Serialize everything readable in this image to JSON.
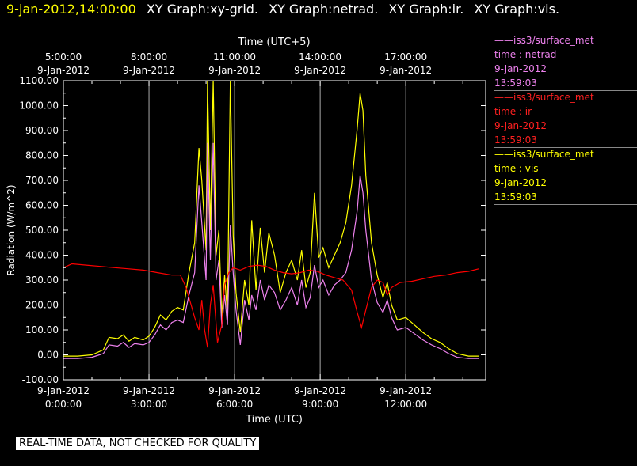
{
  "header": {
    "timestamp": "9-jan-2012,14:00:00",
    "graphs": [
      "XY Graph:xy-grid.",
      "XY Graph:netrad.",
      "XY Graph:ir.",
      "XY Graph:vis."
    ]
  },
  "legend": [
    {
      "source": "iss3/surface_met",
      "vars": "time : netrad",
      "date": "9-Jan-2012",
      "time": "13:59:03",
      "color": "#ee82ee"
    },
    {
      "source": "iss3/surface_met",
      "vars": "time : ir",
      "date": "9-Jan-2012",
      "time": "13:59:03",
      "color": "#ff0000"
    },
    {
      "source": "iss3/surface_met",
      "vars": "time : vis",
      "date": "9-Jan-2012",
      "time": "13:59:03",
      "color": "#ffff00"
    }
  ],
  "warning": "REAL-TIME DATA, NOT CHECKED FOR QUALITY",
  "chart_data": {
    "type": "line",
    "ylabel": "Radiation (W/m^2)",
    "xlabel": "Time (UTC)",
    "x2label": "Time (UTC+5)",
    "ylim": [
      -100,
      1100
    ],
    "xlim": [
      0,
      14.8
    ],
    "yticks": [
      -100,
      0,
      100,
      200,
      300,
      400,
      500,
      600,
      700,
      800,
      900,
      1000,
      1100
    ],
    "ytick_labels": [
      "-100.00",
      "0.00",
      "100.00",
      "200.00",
      "300.00",
      "400.00",
      "500.00",
      "600.00",
      "700.00",
      "800.00",
      "900.00",
      "1000.00",
      "1100.00"
    ],
    "xticks_bottom": [
      {
        "x": 0,
        "date": "9-Jan-2012",
        "time": "0:00:00"
      },
      {
        "x": 3,
        "date": "9-Jan-2012",
        "time": "3:00:00"
      },
      {
        "x": 6,
        "date": "9-Jan-2012",
        "time": "6:00:00"
      },
      {
        "x": 9,
        "date": "9-Jan-2012",
        "time": "9:00:00"
      },
      {
        "x": 12,
        "date": "9-Jan-2012",
        "time": "12:00:00"
      }
    ],
    "xticks_top": [
      {
        "x": 0,
        "date": "9-Jan-2012",
        "time": "5:00:00"
      },
      {
        "x": 3,
        "date": "9-Jan-2012",
        "time": "8:00:00"
      },
      {
        "x": 6,
        "date": "9-Jan-2012",
        "time": "11:00:00"
      },
      {
        "x": 9,
        "date": "9-Jan-2012",
        "time": "14:00:00"
      },
      {
        "x": 12,
        "date": "9-Jan-2012",
        "time": "17:00:00"
      }
    ],
    "grid": "vertical",
    "series": [
      {
        "key": "vis",
        "color": "#ffff00",
        "points": [
          [
            0,
            -5
          ],
          [
            0.5,
            -5
          ],
          [
            1,
            0
          ],
          [
            1.4,
            20
          ],
          [
            1.6,
            70
          ],
          [
            1.9,
            65
          ],
          [
            2.1,
            80
          ],
          [
            2.3,
            55
          ],
          [
            2.5,
            70
          ],
          [
            2.8,
            60
          ],
          [
            3.0,
            75
          ],
          [
            3.2,
            110
          ],
          [
            3.4,
            160
          ],
          [
            3.6,
            140
          ],
          [
            3.8,
            175
          ],
          [
            4.0,
            190
          ],
          [
            4.2,
            180
          ],
          [
            4.4,
            330
          ],
          [
            4.6,
            450
          ],
          [
            4.75,
            830
          ],
          [
            4.85,
            700
          ],
          [
            5.0,
            420
          ],
          [
            5.05,
            1100
          ],
          [
            5.15,
            500
          ],
          [
            5.25,
            1100
          ],
          [
            5.35,
            400
          ],
          [
            5.45,
            500
          ],
          [
            5.55,
            150
          ],
          [
            5.65,
            320
          ],
          [
            5.75,
            160
          ],
          [
            5.85,
            1100
          ],
          [
            5.95,
            480
          ],
          [
            6.05,
            250
          ],
          [
            6.2,
            90
          ],
          [
            6.35,
            300
          ],
          [
            6.5,
            200
          ],
          [
            6.6,
            540
          ],
          [
            6.75,
            260
          ],
          [
            6.9,
            510
          ],
          [
            7.05,
            330
          ],
          [
            7.2,
            490
          ],
          [
            7.4,
            400
          ],
          [
            7.6,
            250
          ],
          [
            7.8,
            330
          ],
          [
            8.0,
            380
          ],
          [
            8.2,
            300
          ],
          [
            8.35,
            420
          ],
          [
            8.5,
            270
          ],
          [
            8.65,
            330
          ],
          [
            8.8,
            650
          ],
          [
            8.95,
            390
          ],
          [
            9.1,
            430
          ],
          [
            9.3,
            350
          ],
          [
            9.5,
            400
          ],
          [
            9.7,
            450
          ],
          [
            9.9,
            530
          ],
          [
            10.1,
            680
          ],
          [
            10.3,
            910
          ],
          [
            10.4,
            1050
          ],
          [
            10.5,
            980
          ],
          [
            10.6,
            720
          ],
          [
            10.8,
            450
          ],
          [
            11.0,
            320
          ],
          [
            11.2,
            230
          ],
          [
            11.35,
            290
          ],
          [
            11.5,
            200
          ],
          [
            11.7,
            140
          ],
          [
            12.0,
            150
          ],
          [
            12.3,
            120
          ],
          [
            12.6,
            90
          ],
          [
            12.9,
            65
          ],
          [
            13.2,
            50
          ],
          [
            13.5,
            25
          ],
          [
            13.8,
            5
          ],
          [
            14.2,
            -5
          ],
          [
            14.55,
            -5
          ]
        ]
      },
      {
        "key": "netrad",
        "color": "#ee82ee",
        "points": [
          [
            0,
            -15
          ],
          [
            0.5,
            -15
          ],
          [
            1,
            -10
          ],
          [
            1.4,
            5
          ],
          [
            1.6,
            40
          ],
          [
            1.9,
            35
          ],
          [
            2.1,
            50
          ],
          [
            2.3,
            30
          ],
          [
            2.5,
            45
          ],
          [
            2.8,
            40
          ],
          [
            3.0,
            50
          ],
          [
            3.2,
            80
          ],
          [
            3.4,
            120
          ],
          [
            3.6,
            100
          ],
          [
            3.8,
            130
          ],
          [
            4.0,
            140
          ],
          [
            4.2,
            130
          ],
          [
            4.4,
            240
          ],
          [
            4.6,
            330
          ],
          [
            4.75,
            680
          ],
          [
            4.85,
            530
          ],
          [
            5.0,
            300
          ],
          [
            5.05,
            850
          ],
          [
            5.15,
            380
          ],
          [
            5.25,
            850
          ],
          [
            5.35,
            300
          ],
          [
            5.45,
            380
          ],
          [
            5.55,
            110
          ],
          [
            5.65,
            240
          ],
          [
            5.75,
            120
          ],
          [
            5.85,
            520
          ],
          [
            5.95,
            330
          ],
          [
            6.05,
            180
          ],
          [
            6.2,
            40
          ],
          [
            6.35,
            220
          ],
          [
            6.5,
            140
          ],
          [
            6.6,
            240
          ],
          [
            6.75,
            180
          ],
          [
            6.9,
            300
          ],
          [
            7.05,
            220
          ],
          [
            7.2,
            280
          ],
          [
            7.4,
            250
          ],
          [
            7.6,
            180
          ],
          [
            7.8,
            220
          ],
          [
            8.0,
            270
          ],
          [
            8.2,
            200
          ],
          [
            8.35,
            300
          ],
          [
            8.5,
            190
          ],
          [
            8.65,
            230
          ],
          [
            8.8,
            360
          ],
          [
            8.95,
            270
          ],
          [
            9.1,
            300
          ],
          [
            9.3,
            240
          ],
          [
            9.5,
            280
          ],
          [
            9.7,
            300
          ],
          [
            9.9,
            330
          ],
          [
            10.1,
            420
          ],
          [
            10.3,
            580
          ],
          [
            10.4,
            720
          ],
          [
            10.5,
            650
          ],
          [
            10.6,
            500
          ],
          [
            10.8,
            300
          ],
          [
            11.0,
            210
          ],
          [
            11.2,
            170
          ],
          [
            11.35,
            220
          ],
          [
            11.5,
            150
          ],
          [
            11.7,
            100
          ],
          [
            12.0,
            110
          ],
          [
            12.3,
            85
          ],
          [
            12.6,
            60
          ],
          [
            12.9,
            40
          ],
          [
            13.2,
            25
          ],
          [
            13.5,
            5
          ],
          [
            13.8,
            -10
          ],
          [
            14.2,
            -15
          ],
          [
            14.55,
            -15
          ]
        ]
      },
      {
        "key": "ir",
        "color": "#ff0000",
        "points": [
          [
            0,
            350
          ],
          [
            0.3,
            365
          ],
          [
            0.8,
            360
          ],
          [
            1.3,
            355
          ],
          [
            1.8,
            350
          ],
          [
            2.3,
            345
          ],
          [
            2.8,
            340
          ],
          [
            3.3,
            330
          ],
          [
            3.8,
            320
          ],
          [
            4.1,
            320
          ],
          [
            4.3,
            270
          ],
          [
            4.5,
            190
          ],
          [
            4.6,
            150
          ],
          [
            4.75,
            100
          ],
          [
            4.85,
            220
          ],
          [
            4.95,
            100
          ],
          [
            5.05,
            30
          ],
          [
            5.15,
            200
          ],
          [
            5.25,
            280
          ],
          [
            5.4,
            50
          ],
          [
            5.55,
            120
          ],
          [
            5.65,
            280
          ],
          [
            5.8,
            330
          ],
          [
            5.95,
            350
          ],
          [
            6.2,
            340
          ],
          [
            6.5,
            355
          ],
          [
            6.8,
            360
          ],
          [
            7.1,
            355
          ],
          [
            7.4,
            340
          ],
          [
            7.7,
            330
          ],
          [
            8.0,
            325
          ],
          [
            8.3,
            330
          ],
          [
            8.6,
            340
          ],
          [
            8.9,
            335
          ],
          [
            9.2,
            320
          ],
          [
            9.5,
            310
          ],
          [
            9.8,
            300
          ],
          [
            10.1,
            260
          ],
          [
            10.3,
            170
          ],
          [
            10.45,
            110
          ],
          [
            10.6,
            180
          ],
          [
            10.8,
            270
          ],
          [
            11.0,
            300
          ],
          [
            11.2,
            290
          ],
          [
            11.35,
            240
          ],
          [
            11.5,
            270
          ],
          [
            11.8,
            290
          ],
          [
            12.2,
            295
          ],
          [
            12.6,
            305
          ],
          [
            13.0,
            315
          ],
          [
            13.4,
            320
          ],
          [
            13.8,
            330
          ],
          [
            14.2,
            335
          ],
          [
            14.55,
            345
          ]
        ]
      }
    ]
  }
}
